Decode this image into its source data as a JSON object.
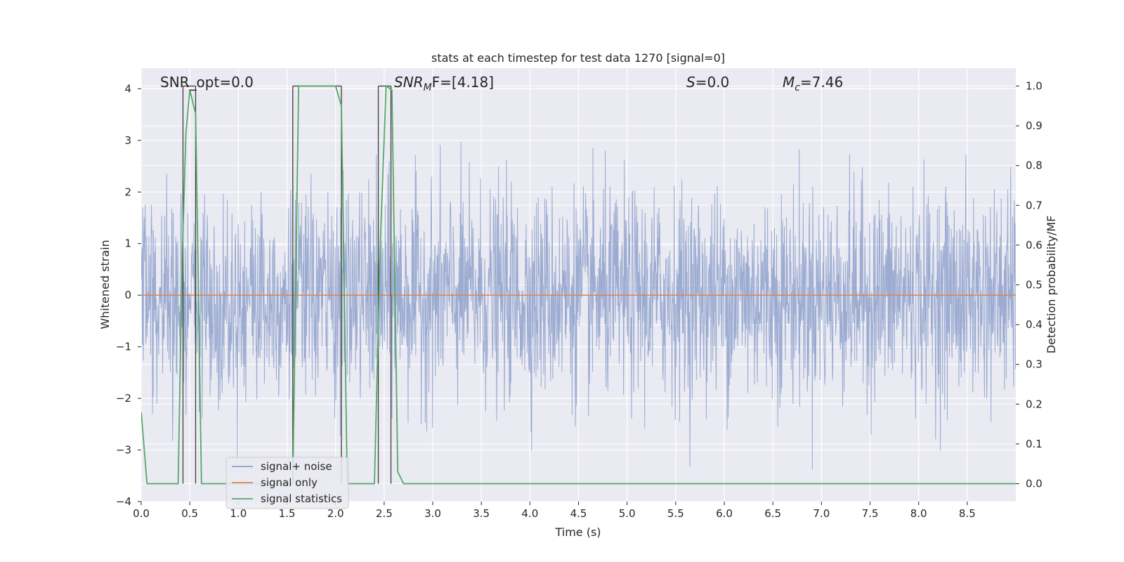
{
  "chart_data": {
    "type": "line",
    "title": "stats at each timestep for test data 1270 [signal=0]",
    "xlabel": "Time (s)",
    "ylabel_left": "Whitened strain",
    "ylabel_right": "Detection probability/MF",
    "xlim": [
      0.0,
      9.0
    ],
    "ylim_left": [
      -4.0,
      4.4
    ],
    "ylim_right": [
      -0.045,
      1.045
    ],
    "xticks": [
      "0.0",
      "0.5",
      "1.0",
      "1.5",
      "2.0",
      "2.5",
      "3.0",
      "3.5",
      "4.0",
      "4.5",
      "5.0",
      "5.5",
      "6.0",
      "6.5",
      "7.0",
      "7.5",
      "8.0",
      "8.5"
    ],
    "yticks_left": [
      "4",
      "3",
      "2",
      "1",
      "0",
      "−1",
      "−2",
      "−3",
      "−4"
    ],
    "yticks_right": [
      "1.0",
      "0.9",
      "0.8",
      "0.7",
      "0.6",
      "0.5",
      "0.4",
      "0.3",
      "0.2",
      "0.1",
      "0.0"
    ],
    "grid": true,
    "legend_position": "lower-left",
    "annotations": {
      "snr_opt": "SNR_opt=0.0",
      "snr_mf_sym": "SNR",
      "snr_mf_sub": "M",
      "snr_mf_tail": "F=[4.18]",
      "s_sym": "S",
      "s_tail": "=0.0",
      "mc_sym": "M",
      "mc_sub": "c",
      "mc_tail": "=7.46"
    },
    "series": [
      {
        "name": "signal+ noise",
        "color": "#8da0cb",
        "axis": "left",
        "note": "whitened noise, approx. zero mean, amplitude mostly within ±2.5, peaks near ±4",
        "approx_std": 1.0
      },
      {
        "name": "signal only",
        "color": "#dd8452",
        "axis": "left",
        "x": [
          0.0,
          9.0
        ],
        "y": [
          0.0,
          0.0
        ]
      },
      {
        "name": "signal statistics",
        "color": "#55a868",
        "axis": "right",
        "x": [
          0.0,
          0.06,
          0.12,
          0.38,
          0.42,
          0.46,
          0.5,
          0.56,
          0.62,
          1.56,
          1.62,
          2.0,
          2.06,
          2.12,
          2.4,
          2.46,
          2.52,
          2.58,
          2.64,
          2.7,
          9.0
        ],
        "y": [
          0.18,
          0.0,
          0.0,
          0.0,
          0.55,
          0.88,
          0.99,
          0.93,
          0.0,
          0.0,
          1.0,
          1.0,
          0.95,
          0.0,
          0.0,
          0.6,
          1.0,
          0.99,
          0.03,
          0.0,
          0.0
        ]
      }
    ],
    "vertical_lines": [
      {
        "x": [
          0.43,
          0.56
        ],
        "color": "#3b3b3b"
      },
      {
        "x": [
          1.56,
          2.06
        ],
        "color": "#3b3b3b"
      },
      {
        "x": [
          2.44,
          2.57
        ],
        "color": "#3b3b3b"
      }
    ],
    "right_axis_grid_values": [
      1.0,
      0.9,
      0.8,
      0.7,
      0.6,
      0.5,
      0.4,
      0.3,
      0.2,
      0.1,
      0.0
    ]
  }
}
